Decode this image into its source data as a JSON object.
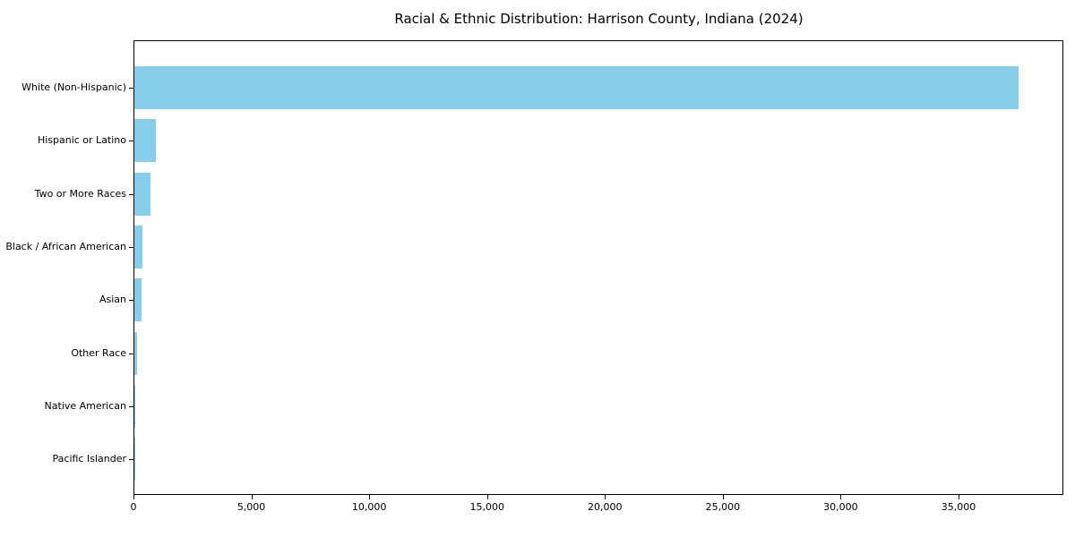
{
  "chart_data": {
    "type": "bar",
    "orientation": "horizontal",
    "title": "Racial & Ethnic Distribution: Harrison County, Indiana (2024)",
    "categories": [
      "White (Non-Hispanic)",
      "Hispanic or Latino",
      "Two or More Races",
      "Black / African American",
      "Asian",
      "Other Race",
      "Native American",
      "Pacific Islander"
    ],
    "values": [
      37500,
      920,
      680,
      350,
      300,
      110,
      30,
      10
    ],
    "xlabel": "",
    "ylabel": "",
    "xlim": [
      0,
      39500
    ],
    "xticks": [
      0,
      5000,
      10000,
      15000,
      20000,
      25000,
      30000,
      35000
    ],
    "xtick_labels": [
      "0",
      "5,000",
      "10,000",
      "15,000",
      "20,000",
      "25,000",
      "30,000",
      "35,000"
    ],
    "bar_color": "#87ceeb",
    "axis_color": "#000000",
    "background_color": "#ffffff",
    "grid": false,
    "legend": null
  }
}
